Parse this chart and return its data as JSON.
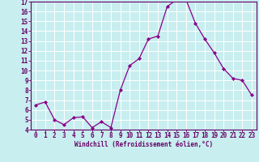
{
  "x": [
    0,
    1,
    2,
    3,
    4,
    5,
    6,
    7,
    8,
    9,
    10,
    11,
    12,
    13,
    14,
    15,
    16,
    17,
    18,
    19,
    20,
    21,
    22,
    23
  ],
  "y": [
    6.5,
    6.8,
    5.0,
    4.5,
    5.2,
    5.3,
    4.2,
    4.8,
    4.2,
    8.0,
    10.5,
    11.2,
    13.2,
    13.5,
    16.5,
    17.2,
    17.2,
    14.8,
    13.2,
    11.8,
    10.2,
    9.2,
    9.0,
    7.5
  ],
  "line_color": "#880088",
  "marker": "D",
  "marker_size": 2.2,
  "bg_color": "#c8eef0",
  "grid_color": "#ffffff",
  "spine_color": "#660066",
  "tick_color": "#660066",
  "label_color": "#660066",
  "xlabel": "Windchill (Refroidissement éolien,°C)",
  "ylim": [
    4,
    17
  ],
  "xlim": [
    -0.5,
    23.5
  ],
  "yticks": [
    4,
    5,
    6,
    7,
    8,
    9,
    10,
    11,
    12,
    13,
    14,
    15,
    16,
    17
  ],
  "xticks": [
    0,
    1,
    2,
    3,
    4,
    5,
    6,
    7,
    8,
    9,
    10,
    11,
    12,
    13,
    14,
    15,
    16,
    17,
    18,
    19,
    20,
    21,
    22,
    23
  ],
  "label_fontsize": 5.5,
  "tick_fontsize": 5.5
}
